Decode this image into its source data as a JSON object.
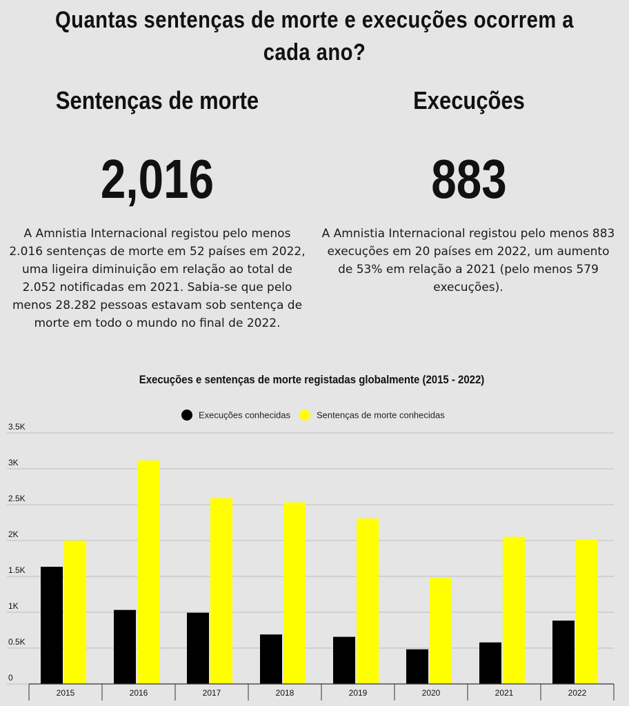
{
  "header": {
    "title": "Quantas sentenças de morte e execuções ocorrem a cada ano?"
  },
  "death_sentences": {
    "heading": "Sentenças de morte",
    "value": "2,016",
    "description": "A Amnistia Internacional registou pelo menos 2.016 sentenças de morte em 52 países em 2022, uma ligeira diminuição em relação ao total de 2.052 notificadas em 2021. Sabia-se que pelo menos 28.282 pessoas estavam sob sentença de morte em todo o mundo no final de 2022."
  },
  "executions": {
    "heading": "Execuções",
    "value": "883",
    "description": "A Amnistia Internacional registou pelo menos 883 execuções em 20 países em 2022, um aumento de 53% em relação a 2021 (pelo menos 579 execuções)."
  },
  "chart_data": {
    "type": "bar",
    "title": "Execuções e sentenças de morte registadas globalmente (2015 - 2022)",
    "categories": [
      "2015",
      "2016",
      "2017",
      "2018",
      "2019",
      "2020",
      "2021",
      "2022"
    ],
    "series": [
      {
        "name": "Execuções conhecidas",
        "color": "#000000",
        "values": [
          1634,
          1032,
          993,
          690,
          657,
          483,
          579,
          883
        ]
      },
      {
        "name": "Sentenças de morte conhecidas",
        "color": "#ffff00",
        "values": [
          1998,
          3117,
          2591,
          2531,
          2307,
          1477,
          2052,
          2016
        ]
      }
    ],
    "y_ticks": [
      {
        "value": 0,
        "label": "0"
      },
      {
        "value": 500,
        "label": "0.5K"
      },
      {
        "value": 1000,
        "label": "1K"
      },
      {
        "value": 1500,
        "label": "1.5K"
      },
      {
        "value": 2000,
        "label": "2K"
      },
      {
        "value": 2500,
        "label": "2.5K"
      },
      {
        "value": 3000,
        "label": "3K"
      },
      {
        "value": 3500,
        "label": "3.5K"
      }
    ],
    "ylim": [
      0,
      3500
    ],
    "grid": true,
    "legend_position": "top-center"
  }
}
